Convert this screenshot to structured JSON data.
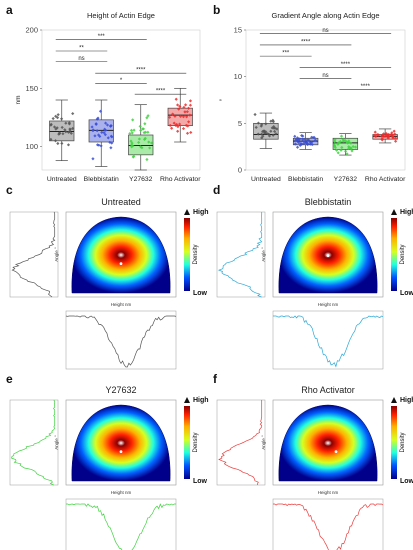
{
  "panel_letters": {
    "a": "a",
    "b": "b",
    "c": "c",
    "d": "d",
    "e": "e",
    "f": "f"
  },
  "colors": {
    "untreated": "#555555",
    "blebbistatin": "#3a4fd6",
    "y27632": "#3fd23f",
    "rho": "#ee2b2b",
    "cyan_profile": "#2aa8d8",
    "green_profile": "#3fd23f",
    "red_profile": "#ee3b3b",
    "box_fill_untreated": "#bdbdbd",
    "box_fill_blebbistatin": "#aab2ee",
    "box_fill_y27632": "#a9eaa9",
    "box_fill_rho": "#f5a8a8"
  },
  "chart_data": [
    {
      "id": "a",
      "type": "box",
      "title": "Height of Actin Edge",
      "ylabel": "nm",
      "xlabel": "",
      "ylim": [
        80,
        200
      ],
      "yticks": [
        100,
        150,
        200
      ],
      "categories": [
        "Untreated",
        "Blebbistatin",
        "Y27632",
        "Rho Activator"
      ],
      "boxes": [
        {
          "name": "Untreated",
          "q1": 105,
          "median": 113,
          "q3": 122,
          "whisker_low": 88,
          "whisker_high": 140
        },
        {
          "name": "Blebbistatin",
          "q1": 104,
          "median": 114,
          "q3": 123,
          "whisker_low": 83,
          "whisker_high": 140
        },
        {
          "name": "Y27632",
          "q1": 93,
          "median": 101,
          "q3": 110,
          "whisker_low": 80,
          "whisker_high": 136
        },
        {
          "name": "Rho Activator",
          "q1": 118,
          "median": 127,
          "q3": 133,
          "whisker_low": 104,
          "whisker_high": 150
        }
      ],
      "significance": [
        {
          "from": 0,
          "to": 2,
          "label": "***",
          "y": 192
        },
        {
          "from": 0,
          "to": 1,
          "label": "**",
          "y": 182
        },
        {
          "from": 0,
          "to": 1,
          "label": "ns",
          "y": 173
        },
        {
          "from": 1,
          "to": 3,
          "label": "****",
          "y": 163
        },
        {
          "from": 1,
          "to": 2,
          "label": "*",
          "y": 154
        },
        {
          "from": 2,
          "to": 3,
          "label": "****",
          "y": 145
        }
      ]
    },
    {
      "id": "b",
      "type": "box",
      "title": "Gradient Angle along Actin Edge",
      "ylabel": "°",
      "xlabel": "",
      "ylim": [
        0,
        15
      ],
      "yticks": [
        0,
        5,
        10,
        15
      ],
      "categories": [
        "Untreated",
        "Blebbistatin",
        "Y27632",
        "Rho Activator"
      ],
      "boxes": [
        {
          "name": "Untreated",
          "q1": 3.3,
          "median": 3.8,
          "q3": 5.0,
          "whisker_low": 2.3,
          "whisker_high": 6.1
        },
        {
          "name": "Blebbistatin",
          "q1": 2.7,
          "median": 3.1,
          "q3": 3.4,
          "whisker_low": 2.2,
          "whisker_high": 4.0
        },
        {
          "name": "Y27632",
          "q1": 2.2,
          "median": 2.9,
          "q3": 3.4,
          "whisker_low": 1.6,
          "whisker_high": 3.9
        },
        {
          "name": "Rho Activator",
          "q1": 3.3,
          "median": 3.6,
          "q3": 3.8,
          "whisker_low": 2.9,
          "whisker_high": 4.4
        }
      ],
      "significance": [
        {
          "from": 0,
          "to": 3,
          "label": "ns",
          "y": 14.6
        },
        {
          "from": 0,
          "to": 2,
          "label": "****",
          "y": 13.4
        },
        {
          "from": 0,
          "to": 1,
          "label": "***",
          "y": 12.2
        },
        {
          "from": 1,
          "to": 3,
          "label": "****",
          "y": 11.0
        },
        {
          "from": 1,
          "to": 2,
          "label": "ns",
          "y": 9.8
        },
        {
          "from": 2,
          "to": 3,
          "label": "****",
          "y": 8.6
        }
      ]
    },
    {
      "id": "c",
      "type": "heatmap",
      "title": "Untreated",
      "xlabel": "Height nm",
      "ylabel": "Angle °",
      "colorbar": {
        "label": "Density",
        "high": "High",
        "low": "Low"
      }
    },
    {
      "id": "d",
      "type": "heatmap",
      "title": "Blebbistatin",
      "xlabel": "Height nm",
      "ylabel": "Angle °",
      "colorbar": {
        "label": "Density",
        "high": "High",
        "low": "Low"
      }
    },
    {
      "id": "e",
      "type": "heatmap",
      "title": "Y27632",
      "xlabel": "Height nm",
      "ylabel": "Angle °",
      "colorbar": {
        "label": "Density",
        "high": "High",
        "low": "Low"
      }
    },
    {
      "id": "f",
      "type": "heatmap",
      "title": "Rho Activator",
      "xlabel": "Height nm",
      "ylabel": "Angle °",
      "colorbar": {
        "label": "Density",
        "high": "High",
        "low": "Low"
      }
    }
  ]
}
